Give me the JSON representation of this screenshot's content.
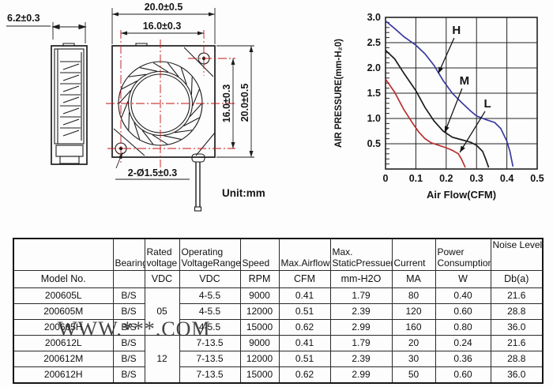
{
  "drawing": {
    "unit_label": "Unit:mm",
    "side_view": {
      "width_dim": "6.2±0.3"
    },
    "front_view": {
      "outer_width_dim": "20.0±0.5",
      "hole_pitch_h_dim": "16.0±0.3",
      "hole_pitch_v_dim": "16.0±0.3",
      "outer_height_dim": "20.0±0.5",
      "holes_dim": "2-Ø1.5±0.3"
    }
  },
  "chart_data": {
    "type": "line",
    "title": "",
    "xlabel": "Air Flow(CFM)",
    "ylabel": "AIR PRESSURE(mm-H₂0)",
    "xlim": [
      0,
      0.5
    ],
    "ylim": [
      0,
      3.0
    ],
    "x_ticks": [
      "0",
      "0.1",
      "0.2",
      "0.3",
      "0.4",
      "0.5"
    ],
    "y_ticks": [
      "0.5",
      "1.0",
      "1.5",
      "2.0",
      "2.5",
      "3.0"
    ],
    "grid": true,
    "legend_position": "inline-labels",
    "series": [
      {
        "name": "H",
        "color": "#3a3aa0",
        "points": [
          [
            0,
            2.93
          ],
          [
            0.03,
            2.78
          ],
          [
            0.06,
            2.62
          ],
          [
            0.1,
            2.45
          ],
          [
            0.13,
            2.28
          ],
          [
            0.16,
            2.05
          ],
          [
            0.19,
            1.75
          ],
          [
            0.22,
            1.5
          ],
          [
            0.25,
            1.32
          ],
          [
            0.28,
            1.15
          ],
          [
            0.3,
            1.05
          ],
          [
            0.33,
            0.98
          ],
          [
            0.36,
            0.92
          ],
          [
            0.38,
            0.8
          ],
          [
            0.4,
            0.55
          ],
          [
            0.41,
            0.35
          ],
          [
            0.42,
            0.05
          ]
        ]
      },
      {
        "name": "M",
        "color": "#1c1c1c",
        "points": [
          [
            0,
            2.35
          ],
          [
            0.03,
            2.18
          ],
          [
            0.06,
            1.9
          ],
          [
            0.1,
            1.55
          ],
          [
            0.13,
            1.22
          ],
          [
            0.16,
            0.95
          ],
          [
            0.19,
            0.75
          ],
          [
            0.22,
            0.63
          ],
          [
            0.25,
            0.58
          ],
          [
            0.28,
            0.53
          ],
          [
            0.3,
            0.47
          ],
          [
            0.32,
            0.35
          ],
          [
            0.33,
            0.2
          ],
          [
            0.34,
            0.03
          ]
        ]
      },
      {
        "name": "L",
        "color": "#bb3030",
        "points": [
          [
            0,
            1.78
          ],
          [
            0.03,
            1.52
          ],
          [
            0.06,
            1.18
          ],
          [
            0.09,
            0.9
          ],
          [
            0.11,
            0.73
          ],
          [
            0.13,
            0.6
          ],
          [
            0.15,
            0.52
          ],
          [
            0.18,
            0.46
          ],
          [
            0.2,
            0.42
          ],
          [
            0.22,
            0.37
          ],
          [
            0.24,
            0.3
          ],
          [
            0.25,
            0.2
          ],
          [
            0.263,
            0.03
          ]
        ]
      }
    ],
    "annotations": [
      {
        "label": "H",
        "label_xy": [
          0.234,
          2.67
        ],
        "arrow_to": [
          0.174,
          1.89
        ]
      },
      {
        "label": "M",
        "label_xy": [
          0.26,
          1.67
        ],
        "arrow_to": [
          0.195,
          0.72
        ]
      },
      {
        "label": "L",
        "label_xy": [
          0.336,
          1.22
        ],
        "arrow_to": [
          0.245,
          0.33
        ]
      }
    ]
  },
  "table": {
    "col_headers": [
      {
        "top": "",
        "bottom": "",
        "unit": "Model No."
      },
      {
        "top": "",
        "bottom": "Bearing",
        "unit": ""
      },
      {
        "top": "Rated",
        "bottom": "voltage",
        "unit": "VDC"
      },
      {
        "top": "Operating",
        "bottom": "VoltageRange",
        "unit": "VDC"
      },
      {
        "top": "",
        "bottom": "Speed",
        "unit": "RPM"
      },
      {
        "top": "",
        "bottom": "Max.Airflow",
        "unit": "CFM"
      },
      {
        "top": "Max.",
        "bottom": "StaticPressuer",
        "unit": "mm-H2O"
      },
      {
        "top": "",
        "bottom": "Current",
        "unit": "MA"
      },
      {
        "top": "Power",
        "bottom": "Consumption",
        "unit": "W"
      },
      {
        "top": "Noise Level",
        "bottom": "",
        "unit": "Db(a)"
      }
    ],
    "voltage_groups": [
      {
        "voltage": "05",
        "start_row": 0,
        "span": 3
      },
      {
        "voltage": "12",
        "start_row": 3,
        "span": 3
      }
    ],
    "rows": [
      {
        "model": "200605L",
        "bearing": "B/S",
        "range": "4-5.5",
        "speed": "9000",
        "airflow": "0.41",
        "pressure": "1.79",
        "current": "80",
        "power": "0.40",
        "noise": "21.6"
      },
      {
        "model": "200605M",
        "bearing": "B/S",
        "range": "4-5.5",
        "speed": "12000",
        "airflow": "0.51",
        "pressure": "2.39",
        "current": "120",
        "power": "0.60",
        "noise": "28.8"
      },
      {
        "model": "200605H",
        "bearing": "B/S",
        "range": "4-5.5",
        "speed": "15000",
        "airflow": "0.62",
        "pressure": "2.99",
        "current": "160",
        "power": "0.80",
        "noise": "36.0"
      },
      {
        "model": "200612L",
        "bearing": "B/S",
        "range": "7-13.5",
        "speed": "9000",
        "airflow": "0.41",
        "pressure": "1.79",
        "current": "20",
        "power": "0.24",
        "noise": "21.6"
      },
      {
        "model": "200612M",
        "bearing": "B/S",
        "range": "7-13.5",
        "speed": "12000",
        "airflow": "0.51",
        "pressure": "2.39",
        "current": "30",
        "power": "0.36",
        "noise": "28.8"
      },
      {
        "model": "200612H",
        "bearing": "B/S",
        "range": "7-13.5",
        "speed": "15000",
        "airflow": "0.62",
        "pressure": "2.99",
        "current": "50",
        "power": "0.60",
        "noise": "36.0"
      }
    ]
  },
  "watermark": "WWW.***.COM"
}
